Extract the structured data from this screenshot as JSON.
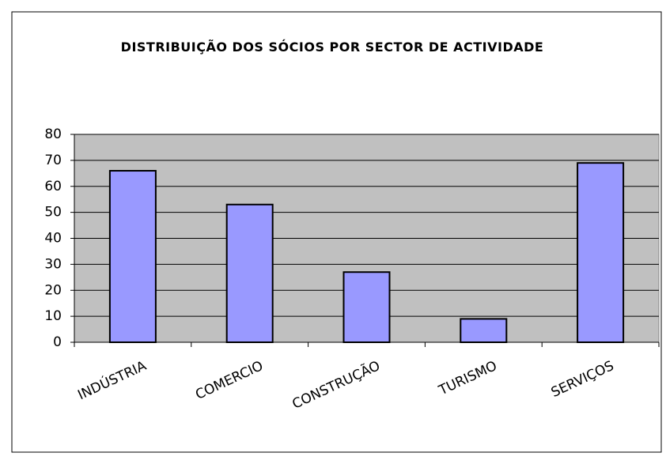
{
  "chart_data": {
    "type": "bar",
    "title": "DISTRIBUIÇÃO DOS SÓCIOS POR SECTOR DE ACTIVIDADE",
    "categories": [
      "INDÚSTRIA",
      "COMERCIO",
      "CONSTRUÇÃO",
      "TURISMO",
      "SERVIÇOS"
    ],
    "values": [
      66,
      53,
      27,
      9,
      69
    ],
    "color": "#9999ff",
    "plot_background": "#c0c0c0",
    "ylim": [
      0,
      80
    ],
    "yticks": [
      0,
      10,
      20,
      30,
      40,
      50,
      60,
      70,
      80
    ],
    "grid": true
  }
}
